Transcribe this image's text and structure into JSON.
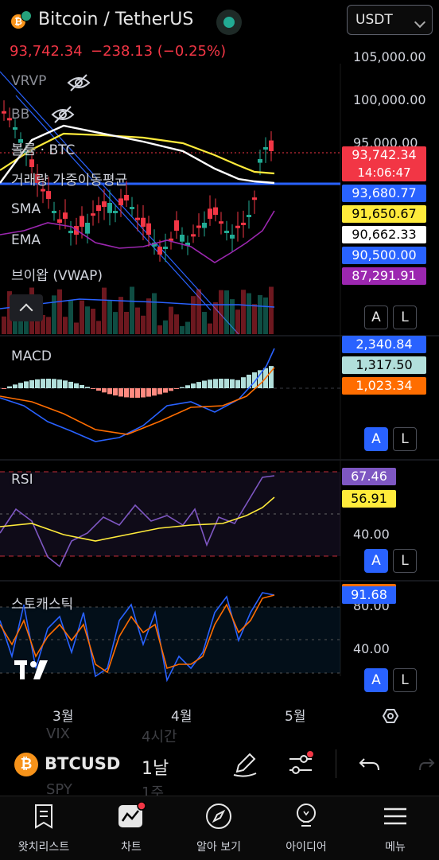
{
  "header": {
    "symbol": "Bitcoin / TetherUS",
    "currency": "USDT",
    "last_price": "93,742.34",
    "change": "−238.13 (−0.25%)"
  },
  "indicators": {
    "vrvp": "VRVP",
    "bb": "BB",
    "volume": "볼륨 · BTC",
    "volume_ma": "거래량 가중이동평균",
    "sma": "SMA",
    "ema": "EMA",
    "vwap": "브이왑 (VWAP)",
    "macd": "MACD",
    "rsi": "RSI",
    "stoch": "스토캐스틱"
  },
  "price_axis": [
    "105,000.00",
    "100,000.00",
    "95,000.00"
  ],
  "price_tags": {
    "last": "93,742.34",
    "countdown": "14:06:47",
    "t1": "93,680.77",
    "t2": "91,650.67",
    "t3": "90,662.33",
    "t4": "90,500.00",
    "t5": "87,291.91"
  },
  "macd_tags": [
    "2,340.84",
    "1,317.50",
    "1,023.34"
  ],
  "rsi_tags": [
    "67.46",
    "56.91"
  ],
  "rsi_axis": "40.00",
  "stoch_tag": "91.68",
  "stoch_axis": [
    "80.00",
    "40.00"
  ],
  "scale_buttons": {
    "auto": "A",
    "log": "L"
  },
  "months": [
    "3월",
    "4월",
    "5월"
  ],
  "toolbar": {
    "ticker": "BTCUSD",
    "interval": "1날",
    "faded_above_ticker": "VIX",
    "faded_above_interval": "4시간",
    "faded_below_ticker": "SPY",
    "faded_below_interval": "1주"
  },
  "nav": [
    {
      "label": "왓치리스트",
      "icon": "watchlist-icon"
    },
    {
      "label": "차트",
      "icon": "chart-icon"
    },
    {
      "label": "알아 보기",
      "icon": "compass-icon"
    },
    {
      "label": "아이디어",
      "icon": "lightbulb-icon"
    },
    {
      "label": "메뉴",
      "icon": "menu-icon"
    }
  ],
  "colors": {
    "up": "#22ab94",
    "down": "#f23645",
    "accent": "#2962ff",
    "sma": "#ffeb3b",
    "ema": "#ffffff",
    "vwap": "#9c27b0",
    "macd_signal": "#ff6d00",
    "rsi": "#7e57c2"
  }
}
